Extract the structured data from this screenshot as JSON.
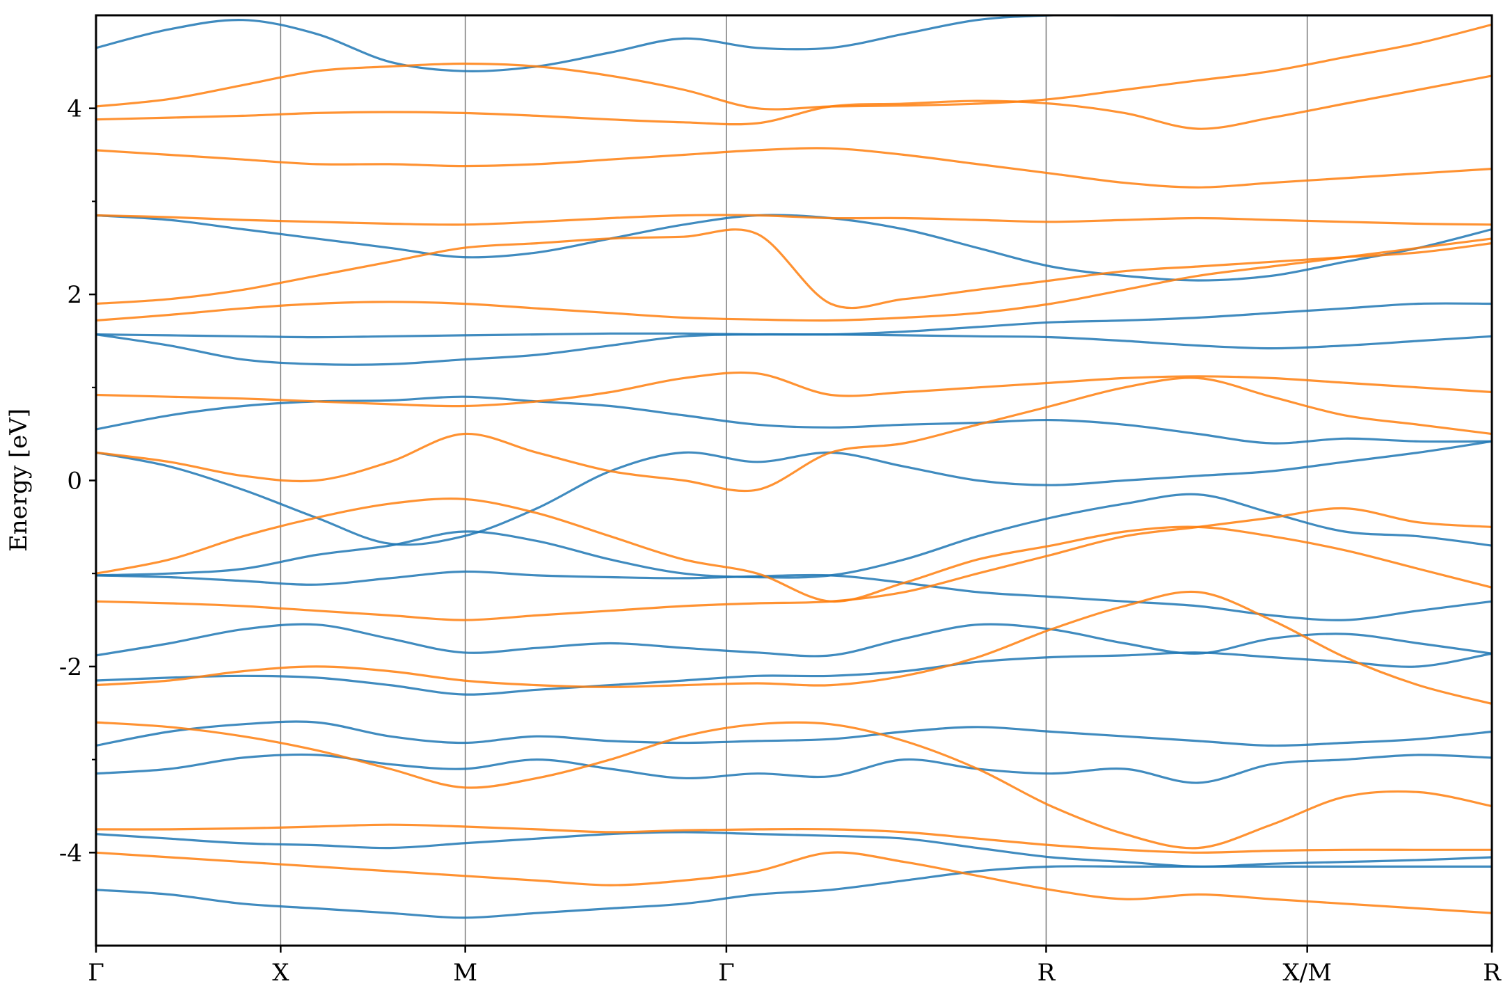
{
  "chart_data": {
    "type": "line",
    "title": "",
    "xlabel": "",
    "ylabel": "Energy [eV]",
    "ylim": [
      -5,
      5
    ],
    "yticks": [
      4,
      2,
      0,
      -2,
      -4
    ],
    "ytick_labels": [
      "4",
      "2",
      "0",
      "-2",
      "-4"
    ],
    "minor_yticks": [
      3,
      1,
      -1,
      -3
    ],
    "grid": false,
    "legend": "none",
    "colors": {
      "spin_up": "#1f77b4",
      "spin_down": "#ff7f0e",
      "kpoint_line": "#808080"
    },
    "kpath": {
      "labels": [
        "Γ",
        "X",
        "M",
        "Γ",
        "R",
        "X/M",
        "R"
      ],
      "positions": [
        0,
        0.5,
        1.0,
        1.7071,
        2.5731,
        3.2802,
        3.7802
      ],
      "xlim": [
        0,
        3.7802
      ]
    },
    "series": [
      {
        "color": "#1f77b4",
        "bands": [
          [
            -3.15,
            -3.1,
            -2.98,
            -2.95,
            -3.05,
            -3.1,
            -3.0,
            -3.1,
            -3.2,
            -3.15,
            -3.18,
            -3.0,
            -3.1,
            -3.15,
            -3.1,
            -3.25,
            -3.05,
            -3.0,
            -2.95,
            -2.98
          ],
          [
            -2.85,
            -2.7,
            -2.62,
            -2.6,
            -2.75,
            -2.82,
            -2.75,
            -2.8,
            -2.82,
            -2.8,
            -2.78,
            -2.7,
            -2.65,
            -2.7,
            -2.75,
            -2.8,
            -2.85,
            -2.82,
            -2.78,
            -2.7
          ],
          [
            -2.15,
            -2.12,
            -2.1,
            -2.12,
            -2.2,
            -2.3,
            -2.25,
            -2.2,
            -2.15,
            -2.1,
            -2.1,
            -2.05,
            -1.95,
            -1.9,
            -1.88,
            -1.85,
            -1.9,
            -1.95,
            -2.0,
            -1.86
          ],
          [
            -1.88,
            -1.75,
            -1.6,
            -1.55,
            -1.7,
            -1.85,
            -1.8,
            -1.75,
            -1.8,
            -1.85,
            -1.88,
            -1.7,
            -1.55,
            -1.6,
            -1.75,
            -1.86,
            -1.7,
            -1.65,
            -1.75,
            -1.86
          ],
          [
            -1.02,
            -1.04,
            -1.08,
            -1.12,
            -1.05,
            -0.98,
            -1.02,
            -1.04,
            -1.05,
            -1.03,
            -1.02,
            -1.1,
            -1.2,
            -1.25,
            -1.3,
            -1.35,
            -1.45,
            -1.5,
            -1.4,
            -1.3
          ],
          [
            -1.02,
            -1.0,
            -0.95,
            -0.8,
            -0.7,
            -0.55,
            -0.65,
            -0.85,
            -1.0,
            -1.04,
            -1.02,
            -0.85,
            -0.6,
            -0.4,
            -0.25,
            -0.15,
            -0.35,
            -0.55,
            -0.6,
            -0.7
          ],
          [
            0.3,
            0.15,
            -0.1,
            -0.4,
            -0.68,
            -0.6,
            -0.3,
            0.1,
            0.3,
            0.2,
            0.3,
            0.15,
            0.0,
            -0.05,
            0.0,
            0.05,
            0.1,
            0.2,
            0.3,
            0.42
          ],
          [
            0.55,
            0.7,
            0.8,
            0.85,
            0.86,
            0.9,
            0.85,
            0.8,
            0.7,
            0.6,
            0.57,
            0.6,
            0.62,
            0.65,
            0.6,
            0.5,
            0.4,
            0.45,
            0.42,
            0.42
          ],
          [
            1.57,
            1.56,
            1.55,
            1.54,
            1.55,
            1.56,
            1.57,
            1.58,
            1.58,
            1.57,
            1.57,
            1.56,
            1.55,
            1.54,
            1.5,
            1.45,
            1.42,
            1.45,
            1.5,
            1.55
          ],
          [
            1.57,
            1.45,
            1.3,
            1.25,
            1.25,
            1.3,
            1.35,
            1.45,
            1.55,
            1.57,
            1.57,
            1.6,
            1.65,
            1.7,
            1.72,
            1.75,
            1.8,
            1.85,
            1.9,
            1.9
          ],
          [
            2.85,
            2.8,
            2.7,
            2.6,
            2.5,
            2.4,
            2.45,
            2.6,
            2.75,
            2.85,
            2.82,
            2.7,
            2.5,
            2.3,
            2.2,
            2.15,
            2.2,
            2.35,
            2.5,
            2.7
          ],
          [
            4.65,
            4.85,
            4.95,
            4.8,
            4.5,
            4.4,
            4.45,
            4.6,
            4.75,
            4.65,
            4.65,
            4.8,
            4.95,
            5.0,
            5.0,
            5.0,
            5.0,
            5.0,
            5.0,
            5.0
          ],
          [
            -4.4,
            -4.45,
            -4.55,
            -4.6,
            -4.65,
            -4.7,
            -4.65,
            -4.6,
            -4.55,
            -4.45,
            -4.4,
            -4.3,
            -4.2,
            -4.15,
            -4.15,
            -4.15,
            -4.15,
            -4.15,
            -4.15,
            -4.15
          ],
          [
            -3.8,
            -3.85,
            -3.9,
            -3.92,
            -3.95,
            -3.9,
            -3.85,
            -3.8,
            -3.78,
            -3.8,
            -3.82,
            -3.85,
            -3.95,
            -4.05,
            -4.1,
            -4.15,
            -4.12,
            -4.1,
            -4.08,
            -4.05
          ]
        ]
      },
      {
        "color": "#ff7f0e",
        "bands": [
          [
            -3.75,
            -3.75,
            -3.74,
            -3.72,
            -3.7,
            -3.72,
            -3.75,
            -3.78,
            -3.76,
            -3.75,
            -3.75,
            -3.78,
            -3.85,
            -3.92,
            -3.97,
            -4.0,
            -3.98,
            -3.97,
            -3.97,
            -3.97
          ],
          [
            -2.6,
            -2.65,
            -2.75,
            -2.9,
            -3.1,
            -3.3,
            -3.2,
            -3.0,
            -2.75,
            -2.62,
            -2.62,
            -2.8,
            -3.1,
            -3.5,
            -3.8,
            -3.95,
            -3.7,
            -3.4,
            -3.35,
            -3.5
          ],
          [
            -2.2,
            -2.15,
            -2.05,
            -2.0,
            -2.05,
            -2.15,
            -2.2,
            -2.22,
            -2.2,
            -2.18,
            -2.2,
            -2.1,
            -1.9,
            -1.6,
            -1.35,
            -1.2,
            -1.5,
            -1.9,
            -2.2,
            -2.4
          ],
          [
            -1.3,
            -1.32,
            -1.35,
            -1.4,
            -1.45,
            -1.5,
            -1.45,
            -1.4,
            -1.35,
            -1.32,
            -1.3,
            -1.2,
            -1.0,
            -0.8,
            -0.6,
            -0.5,
            -0.4,
            -0.3,
            -0.45,
            -0.5
          ],
          [
            -1.0,
            -0.85,
            -0.6,
            -0.4,
            -0.25,
            -0.2,
            -0.35,
            -0.6,
            -0.85,
            -1.0,
            -1.3,
            -1.1,
            -0.85,
            -0.7,
            -0.55,
            -0.5,
            -0.6,
            -0.75,
            -0.95,
            -1.15
          ],
          [
            0.3,
            0.2,
            0.05,
            0.0,
            0.2,
            0.5,
            0.3,
            0.1,
            0.0,
            -0.1,
            0.3,
            0.4,
            0.6,
            0.8,
            1.0,
            1.1,
            0.9,
            0.7,
            0.6,
            0.5
          ],
          [
            0.92,
            0.9,
            0.88,
            0.85,
            0.82,
            0.8,
            0.85,
            0.95,
            1.1,
            1.15,
            0.92,
            0.95,
            1.0,
            1.05,
            1.1,
            1.12,
            1.1,
            1.05,
            1.0,
            0.95
          ],
          [
            1.72,
            1.78,
            1.85,
            1.9,
            1.92,
            1.9,
            1.85,
            1.8,
            1.75,
            1.73,
            1.72,
            1.75,
            1.8,
            1.9,
            2.05,
            2.2,
            2.3,
            2.4,
            2.5,
            2.6
          ],
          [
            1.9,
            1.95,
            2.05,
            2.2,
            2.35,
            2.5,
            2.55,
            2.6,
            2.62,
            2.65,
            1.9,
            1.95,
            2.05,
            2.15,
            2.25,
            2.3,
            2.35,
            2.4,
            2.45,
            2.55
          ],
          [
            2.85,
            2.83,
            2.8,
            2.78,
            2.76,
            2.75,
            2.78,
            2.82,
            2.85,
            2.85,
            2.82,
            2.82,
            2.8,
            2.78,
            2.8,
            2.82,
            2.8,
            2.78,
            2.76,
            2.75
          ],
          [
            3.55,
            3.5,
            3.45,
            3.4,
            3.4,
            3.38,
            3.4,
            3.45,
            3.5,
            3.55,
            3.57,
            3.5,
            3.4,
            3.3,
            3.2,
            3.15,
            3.2,
            3.25,
            3.3,
            3.35
          ],
          [
            3.88,
            3.9,
            3.92,
            3.95,
            3.96,
            3.95,
            3.92,
            3.88,
            3.85,
            3.84,
            4.02,
            4.05,
            4.08,
            4.05,
            3.95,
            3.78,
            3.9,
            4.05,
            4.2,
            4.35
          ],
          [
            4.02,
            4.1,
            4.25,
            4.4,
            4.45,
            4.48,
            4.45,
            4.35,
            4.2,
            4.0,
            4.02,
            4.03,
            4.05,
            4.1,
            4.2,
            4.3,
            4.4,
            4.55,
            4.7,
            4.9
          ],
          [
            -4.0,
            -4.05,
            -4.1,
            -4.15,
            -4.2,
            -4.25,
            -4.3,
            -4.35,
            -4.3,
            -4.2,
            -4.0,
            -4.1,
            -4.25,
            -4.4,
            -4.5,
            -4.45,
            -4.5,
            -4.55,
            -4.6,
            -4.65
          ]
        ]
      }
    ]
  }
}
